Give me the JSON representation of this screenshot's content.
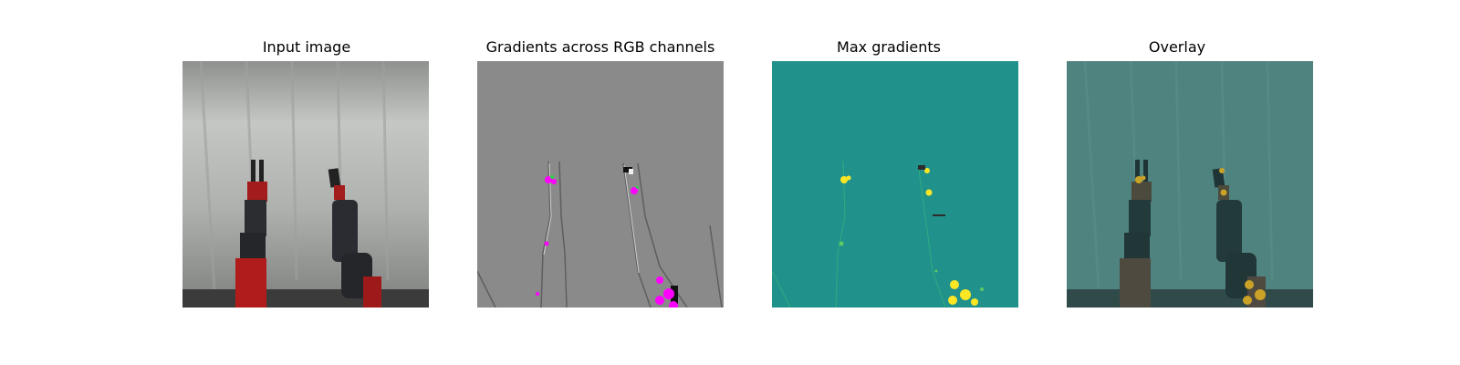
{
  "panels": [
    {
      "title": "Input image"
    },
    {
      "title": "Gradients across RGB channels"
    },
    {
      "title": "Max gradients"
    },
    {
      "title": "Overlay"
    }
  ],
  "colors": {
    "background": "#ffffff",
    "gradient_gray": "#8a8a8a",
    "viridis_mid": "#21918c",
    "viridis_high": "#fde725",
    "overlay_base": "#4b7f7c",
    "robot_red": "#b01c1c",
    "robot_dark": "#2a2c30",
    "magenta": "#ff00ff"
  }
}
